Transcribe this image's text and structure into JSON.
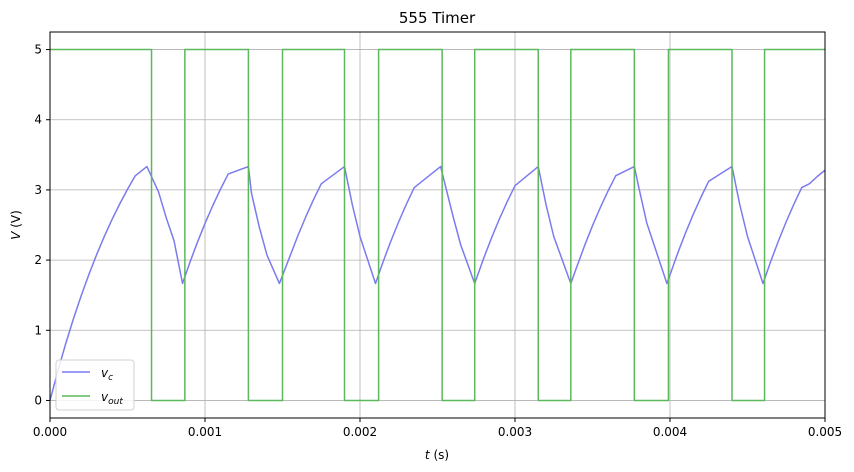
{
  "chart_data": {
    "type": "line",
    "title": "555 Timer",
    "xlabel": "t (s)",
    "ylabel": "V (V)",
    "xlim": [
      0,
      0.005
    ],
    "ylim": [
      -0.25,
      5.25
    ],
    "xticks": [
      "0.000",
      "0.001",
      "0.002",
      "0.003",
      "0.004",
      "0.005"
    ],
    "yticks": [
      "0",
      "1",
      "2",
      "3",
      "4",
      "5"
    ],
    "grid": true,
    "legend": "lower-left",
    "series": [
      {
        "name": "v_c",
        "color": "#7b7bf0",
        "points": [
          [
            0,
            0
          ],
          [
            5e-05,
            0.415
          ],
          [
            0.0001,
            0.799
          ],
          [
            0.00015,
            1.155
          ],
          [
            0.0002,
            1.485
          ],
          [
            0.00025,
            1.79
          ],
          [
            0.0003,
            2.073
          ],
          [
            0.00035,
            2.335
          ],
          [
            0.0004,
            2.577
          ],
          [
            0.00045,
            2.801
          ],
          [
            0.0005,
            3.009
          ],
          [
            0.00055,
            3.201
          ],
          [
            0.000625,
            3.333
          ],
          [
            0.0007,
            2.973
          ],
          [
            0.00075,
            2.602
          ],
          [
            0.0008,
            2.277
          ],
          [
            0.000855,
            1.667
          ],
          [
            0.0009,
            1.951
          ],
          [
            0.00095,
            2.248
          ],
          [
            0.001,
            2.522
          ],
          [
            0.00105,
            2.776
          ],
          [
            0.0011,
            3.011
          ],
          [
            0.00115,
            3.228
          ],
          [
            0.00128,
            3.333
          ],
          [
            0.0013,
            2.952
          ],
          [
            0.00135,
            2.472
          ],
          [
            0.0014,
            2.07
          ],
          [
            0.00148,
            1.667
          ],
          [
            0.00155,
            2.065
          ],
          [
            0.0016,
            2.352
          ],
          [
            0.00165,
            2.616
          ],
          [
            0.0017,
            2.861
          ],
          [
            0.00175,
            3.087
          ],
          [
            0.0019,
            3.333
          ],
          [
            0.00195,
            2.792
          ],
          [
            0.002,
            2.336
          ],
          [
            0.0021,
            1.667
          ],
          [
            0.00215,
            1.982
          ],
          [
            0.0022,
            2.276
          ],
          [
            0.00225,
            2.548
          ],
          [
            0.0023,
            2.8
          ],
          [
            0.00235,
            3.033
          ],
          [
            0.00252,
            3.333
          ],
          [
            0.0026,
            2.625
          ],
          [
            0.00265,
            2.215
          ],
          [
            0.00274,
            1.667
          ],
          [
            0.0028,
            2.038
          ],
          [
            0.00285,
            2.324
          ],
          [
            0.0029,
            2.589
          ],
          [
            0.00295,
            2.834
          ],
          [
            0.003,
            3.06
          ],
          [
            0.00315,
            3.333
          ],
          [
            0.0032,
            2.792
          ],
          [
            0.00325,
            2.336
          ],
          [
            0.00336,
            1.667
          ],
          [
            0.0034,
            1.912
          ],
          [
            0.00345,
            2.212
          ],
          [
            0.0035,
            2.49
          ],
          [
            0.00355,
            2.746
          ],
          [
            0.0036,
            2.984
          ],
          [
            0.00365,
            3.203
          ],
          [
            0.00377,
            3.333
          ],
          [
            0.0038,
            3.022
          ],
          [
            0.00385,
            2.53
          ],
          [
            0.00398,
            1.667
          ],
          [
            0.004,
            1.789
          ],
          [
            0.00405,
            2.1
          ],
          [
            0.0041,
            2.386
          ],
          [
            0.00415,
            2.652
          ],
          [
            0.0042,
            2.897
          ],
          [
            0.00425,
            3.124
          ],
          [
            0.0044,
            3.333
          ],
          [
            0.00445,
            2.792
          ],
          [
            0.0045,
            2.336
          ],
          [
            0.0046,
            1.667
          ],
          [
            0.00465,
            1.982
          ],
          [
            0.0047,
            2.276
          ],
          [
            0.00475,
            2.548
          ],
          [
            0.0048,
            2.8
          ],
          [
            0.00485,
            3.033
          ],
          [
            0.0049,
            3.088
          ],
          [
            0.00495,
            3.191
          ],
          [
            0.005,
            3.28
          ]
        ]
      },
      {
        "name": "v_out",
        "color": "#5cb85c",
        "points": [
          [
            0,
            5
          ],
          [
            0.000655,
            5
          ],
          [
            0.000655,
            0
          ],
          [
            0.00087,
            0
          ],
          [
            0.00087,
            5
          ],
          [
            0.00128,
            5
          ],
          [
            0.00128,
            0
          ],
          [
            0.0015,
            0
          ],
          [
            0.0015,
            5
          ],
          [
            0.0019,
            5
          ],
          [
            0.0019,
            0
          ],
          [
            0.00212,
            0
          ],
          [
            0.00212,
            5
          ],
          [
            0.00253,
            5
          ],
          [
            0.00253,
            0
          ],
          [
            0.00274,
            0
          ],
          [
            0.00274,
            5
          ],
          [
            0.00315,
            5
          ],
          [
            0.00315,
            0
          ],
          [
            0.00336,
            0
          ],
          [
            0.00336,
            5
          ],
          [
            0.00377,
            5
          ],
          [
            0.00377,
            0
          ],
          [
            0.00399,
            0
          ],
          [
            0.00399,
            5
          ],
          [
            0.0044,
            5
          ],
          [
            0.0044,
            0
          ],
          [
            0.00461,
            0
          ],
          [
            0.00461,
            5
          ],
          [
            0.005,
            5
          ]
        ]
      }
    ]
  },
  "legend": {
    "items": [
      {
        "base": "v",
        "sub": "c",
        "color": "#7b7bf0"
      },
      {
        "base": "v",
        "sub": "out",
        "color": "#5cb85c"
      }
    ]
  }
}
